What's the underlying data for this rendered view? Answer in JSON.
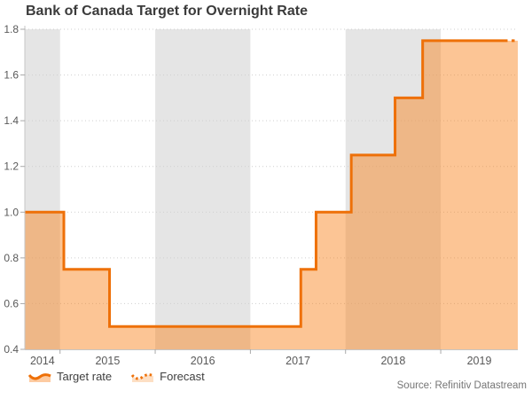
{
  "title": "Bank of Canada Target for Overnight Rate",
  "source_note": "Source: Refinitiv Datastream",
  "legend": {
    "target_rate_label": "Target rate",
    "forecast_label": "Forecast"
  },
  "colors": {
    "line": "#ee7008",
    "fill": "rgba(249,126,19,0.45)",
    "band": "#e5e5e5",
    "grid": "#cfcfcf",
    "axis": "#c6c6c6",
    "tick": "#a9a9a9",
    "label": "#595959"
  },
  "chart_data": {
    "type": "line",
    "subtype": "step-area",
    "title": "Bank of Canada Target for Overnight Rate",
    "xlabel": "",
    "ylabel": "",
    "x_domain": [
      2014.63,
      2019.81
    ],
    "ylim": [
      0.4,
      1.8
    ],
    "y_ticks": [
      0.4,
      0.6,
      0.8,
      1.0,
      1.2,
      1.4,
      1.6,
      1.8
    ],
    "x_ticks": [
      2015,
      2016,
      2017,
      2018,
      2019
    ],
    "year_labels": [
      2014,
      2015,
      2016,
      2017,
      2018,
      2019
    ],
    "shaded_years": [
      2014,
      2016,
      2018
    ],
    "grid": true,
    "legend_position": "bottom-left",
    "series": [
      {
        "name": "Target rate",
        "style": "solid",
        "points": [
          [
            2014.63,
            1.0
          ],
          [
            2015.04,
            1.0
          ],
          [
            2015.04,
            0.75
          ],
          [
            2015.52,
            0.75
          ],
          [
            2015.52,
            0.5
          ],
          [
            2017.53,
            0.5
          ],
          [
            2017.53,
            0.75
          ],
          [
            2017.69,
            0.75
          ],
          [
            2017.69,
            1.0
          ],
          [
            2018.06,
            1.0
          ],
          [
            2018.06,
            1.25
          ],
          [
            2018.52,
            1.25
          ],
          [
            2018.52,
            1.5
          ],
          [
            2018.81,
            1.5
          ],
          [
            2018.81,
            1.75
          ],
          [
            2019.67,
            1.75
          ]
        ]
      },
      {
        "name": "Forecast",
        "style": "dotted",
        "points": [
          [
            2019.67,
            1.75
          ],
          [
            2019.81,
            1.75
          ]
        ]
      }
    ]
  }
}
